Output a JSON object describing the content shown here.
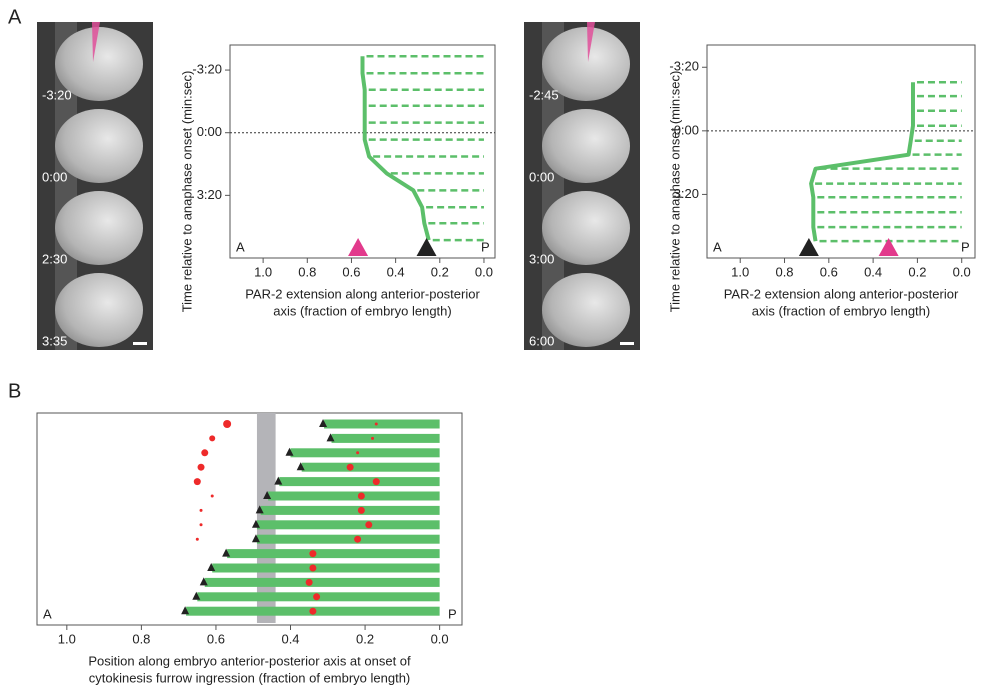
{
  "panel_labels": [
    "A",
    "B"
  ],
  "image_strips": [
    {
      "times": [
        "-3:20",
        "0:00",
        "2:30",
        "3:35"
      ]
    },
    {
      "times": [
        "-2:45",
        "0:00",
        "3:00",
        "6:00"
      ]
    }
  ],
  "chart_data": [
    {
      "type": "line",
      "ylabel": "Time relative to anaphase onset (min:sec)",
      "xlabel": [
        "PAR-2 extension along anterior-posterior",
        "axis (fraction of embryo length)"
      ],
      "xlim": [
        1.15,
        -0.05
      ],
      "xticks": [
        {
          "value": 1,
          "label": "1.0"
        },
        0.8,
        0.6,
        0.4,
        0.2,
        {
          "value": 0,
          "label": "0.0"
        }
      ],
      "ylim": [
        -280,
        400
      ],
      "yticks": [
        {
          "value": -200,
          "label": "-3:20"
        },
        {
          "value": 0,
          "label": "0:00"
        },
        {
          "value": 200,
          "label": "3:20"
        }
      ],
      "reference_y": 0,
      "annotations": [
        "A",
        "P"
      ],
      "series": [
        {
          "color": "#5cbf6a",
          "y": [
            -244,
            -190,
            -137,
            -86,
            -32,
            22,
            76,
            130,
            184,
            238,
            289,
            343
          ],
          "values": [
            0.55,
            0.55,
            0.54,
            0.54,
            0.54,
            0.54,
            0.52,
            0.44,
            0.32,
            0.28,
            0.27,
            0.25
          ]
        }
      ],
      "markers": [
        {
          "value": 0.57,
          "color": "#e23a8c"
        },
        {
          "value": 0.26,
          "color": "#222222"
        }
      ]
    },
    {
      "type": "line",
      "ylabel": "Time relative to anaphase onset (min:sec)",
      "xlabel": [
        "PAR-2 extension along anterior-posterior",
        "axis (fraction of embryo length)"
      ],
      "xlim": [
        1.15,
        -0.06
      ],
      "xticks": [
        {
          "value": 1,
          "label": "1.0"
        },
        0.8,
        0.6,
        0.4,
        0.2,
        {
          "value": 0,
          "label": "0.0"
        }
      ],
      "ylim": [
        -270,
        400
      ],
      "yticks": [
        {
          "value": -200,
          "label": "-3:20"
        },
        {
          "value": 0,
          "label": "0:00"
        },
        {
          "value": 200,
          "label": "3:20"
        }
      ],
      "reference_y": 0,
      "annotations": [
        "A",
        "P"
      ],
      "series": [
        {
          "color": "#5cbf6a",
          "y": [
            -153,
            -109,
            -63,
            -16,
            31,
            75,
            119,
            166,
            209,
            256,
            303,
            347
          ],
          "values": [
            0.22,
            0.22,
            0.22,
            0.22,
            0.23,
            0.24,
            0.66,
            0.68,
            0.67,
            0.67,
            0.67,
            0.66
          ]
        }
      ],
      "markers": [
        {
          "value": 0.69,
          "color": "#222222"
        },
        {
          "value": 0.33,
          "color": "#e23a8c"
        }
      ]
    },
    {
      "type": "bar",
      "orientation": "horizontal",
      "xlabel": [
        "Position along embryo anterior-posterior axis at onset of",
        "cytokinesis furrow ingression  (fraction of embryo length)"
      ],
      "xlim": [
        1.08,
        -0.06
      ],
      "xticks": [
        {
          "value": 1,
          "label": "1.0"
        },
        0.8,
        0.6,
        0.4,
        0.2,
        {
          "value": 0,
          "label": "0.0"
        }
      ],
      "annotations": [
        "A",
        "P"
      ],
      "color": "#5cbf6a",
      "marker_color": "#222222",
      "values": [
        0.31,
        0.29,
        0.4,
        0.37,
        0.43,
        0.46,
        0.48,
        0.49,
        0.49,
        0.57,
        0.61,
        0.63,
        0.65,
        0.68
      ],
      "shaded_range": [
        0.49,
        0.44
      ],
      "scatter": [
        {
          "color": "#ee2a2a",
          "rows": [
            0,
            1,
            2,
            3,
            4,
            5,
            6,
            7,
            8
          ],
          "values": [
            0.57,
            0.61,
            0.63,
            0.64,
            0.65,
            0.61,
            0.64,
            0.64,
            0.65
          ],
          "sizes": [
            4,
            3,
            3.5,
            3.5,
            3.5,
            1.5,
            1.5,
            1.5,
            1.5
          ]
        },
        {
          "color": "#ee2a2a",
          "rows": [
            0,
            1,
            2,
            3,
            4,
            5,
            6,
            7,
            8,
            9,
            10,
            11,
            12,
            13
          ],
          "values": [
            0.17,
            0.18,
            0.22,
            0.24,
            0.17,
            0.21,
            0.21,
            0.19,
            0.22,
            0.34,
            0.34,
            0.35,
            0.33,
            0.34
          ],
          "sizes": [
            1.5,
            1.5,
            1.5,
            3.5,
            3.5,
            3.5,
            3.5,
            3.5,
            3.5,
            3.5,
            3.5,
            3.5,
            3.5,
            3.5
          ]
        }
      ]
    }
  ]
}
